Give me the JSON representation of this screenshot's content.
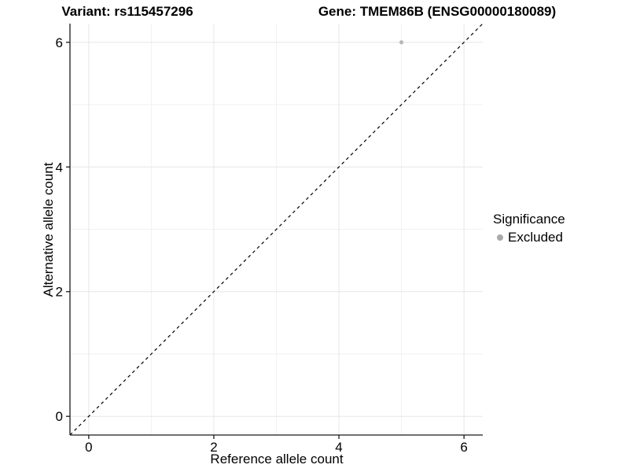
{
  "header": {
    "variant_title": "Variant: rs115457296",
    "gene_title": "Gene: TMEM86B (ENSG00000180089)"
  },
  "chart_data": {
    "type": "scatter",
    "xlabel": "Reference allele count",
    "ylabel": "Alternative allele count",
    "xlim": [
      -0.3,
      6.3
    ],
    "ylim": [
      -0.3,
      6.3
    ],
    "xticks": [
      0,
      2,
      4,
      6
    ],
    "yticks": [
      0,
      2,
      4,
      6
    ],
    "x_minor_ticks": [
      1,
      3,
      5
    ],
    "y_minor_ticks": [
      1,
      3,
      5
    ],
    "grid": "on",
    "series": [
      {
        "name": "Excluded",
        "color": "#b8b8b8",
        "points": [
          {
            "x": 5,
            "y": 6
          }
        ]
      }
    ],
    "reference_line": {
      "type": "identity",
      "from": -0.3,
      "to": 6.3,
      "style": "dashed",
      "color": "#000000"
    },
    "legend": {
      "title": "Significance",
      "position": "right",
      "entries": [
        {
          "label": "Excluded",
          "color": "#aaaaaa"
        }
      ]
    }
  },
  "colors": {
    "background": "#ffffff",
    "grid_major": "#e6e6e6",
    "grid_minor": "#f2f2f2",
    "axis_line": "#1a1a1a",
    "tick_label": "#000000",
    "point": "#b8b8b8"
  }
}
